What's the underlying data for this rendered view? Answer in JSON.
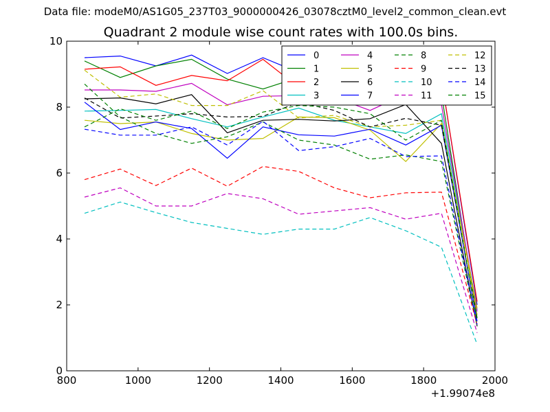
{
  "figure": {
    "suptitle": "Data file: modeM0/AS1G05_237T03_9000000426_03078cztM0_level2_common_clean.evt"
  },
  "chart_data": {
    "type": "line",
    "title": "Quadrant 2 module wise count rates with 100.0s bins.",
    "xlabel": "",
    "ylabel": "",
    "x_offset_label": "+1.99074e8",
    "xlim": [
      800,
      2000
    ],
    "ylim": [
      0,
      10
    ],
    "xticks": [
      800,
      1000,
      1200,
      1400,
      1600,
      1800,
      2000
    ],
    "yticks": [
      0,
      2,
      4,
      6,
      8,
      10
    ],
    "grid": false,
    "legend_position": "top-right",
    "legend_columns": 4,
    "x": [
      850,
      950,
      1050,
      1150,
      1250,
      1350,
      1450,
      1550,
      1650,
      1750,
      1850,
      1950
    ],
    "series": [
      {
        "name": "0",
        "color": "#0000ff",
        "style": "solid",
        "values": [
          9.5,
          9.55,
          9.25,
          9.58,
          9.02,
          9.5,
          9.05,
          9.35,
          9.28,
          8.55,
          8.85,
          2.0
        ]
      },
      {
        "name": "1",
        "color": "#008000",
        "style": "solid",
        "values": [
          9.4,
          8.9,
          9.25,
          9.45,
          8.85,
          8.55,
          8.9,
          8.6,
          8.45,
          8.3,
          8.4,
          1.6
        ]
      },
      {
        "name": "2",
        "color": "#ff0000",
        "style": "solid",
        "values": [
          9.15,
          9.22,
          8.66,
          8.96,
          8.8,
          9.45,
          8.6,
          8.5,
          9.35,
          8.95,
          8.85,
          2.1
        ]
      },
      {
        "name": "3",
        "color": "#00bfbf",
        "style": "solid",
        "values": [
          7.88,
          7.9,
          7.93,
          7.65,
          7.4,
          7.7,
          7.97,
          7.6,
          7.4,
          7.2,
          7.8,
          1.85
        ]
      },
      {
        "name": "4",
        "color": "#bf00bf",
        "style": "solid",
        "values": [
          8.52,
          8.52,
          8.48,
          8.72,
          8.07,
          8.33,
          8.35,
          8.3,
          7.9,
          8.4,
          8.08,
          1.8
        ]
      },
      {
        "name": "5",
        "color": "#bfbf00",
        "style": "solid",
        "values": [
          7.6,
          7.5,
          7.55,
          7.2,
          7.0,
          7.05,
          7.7,
          7.68,
          7.3,
          6.35,
          7.5,
          1.9
        ]
      },
      {
        "name": "6",
        "color": "#000000",
        "style": "solid",
        "values": [
          8.25,
          8.28,
          8.1,
          8.38,
          7.22,
          7.6,
          7.63,
          7.58,
          7.65,
          8.08,
          6.9,
          1.35
        ]
      },
      {
        "name": "7",
        "color": "#0000ff",
        "style": "solid",
        "values": [
          8.15,
          7.32,
          7.55,
          7.35,
          6.45,
          7.4,
          7.16,
          7.12,
          7.33,
          6.85,
          7.45,
          1.5
        ]
      },
      {
        "name": "8",
        "color": "#008000",
        "style": "dashed",
        "values": [
          8.7,
          7.7,
          7.2,
          6.9,
          7.1,
          7.55,
          7.0,
          6.85,
          6.42,
          6.55,
          6.35,
          1.35
        ]
      },
      {
        "name": "9",
        "color": "#ff0000",
        "style": "dashed",
        "values": [
          5.8,
          6.12,
          5.62,
          6.15,
          5.6,
          6.2,
          6.05,
          5.55,
          5.25,
          5.4,
          5.42,
          1.4
        ]
      },
      {
        "name": "10",
        "color": "#00bfbf",
        "style": "dashed",
        "values": [
          4.78,
          5.12,
          4.8,
          4.5,
          4.32,
          4.14,
          4.3,
          4.3,
          4.65,
          4.25,
          3.75,
          0.8
        ]
      },
      {
        "name": "11",
        "color": "#bf00bf",
        "style": "dashed",
        "values": [
          5.27,
          5.55,
          5.0,
          5.0,
          5.38,
          5.22,
          4.75,
          4.85,
          4.95,
          4.6,
          4.78,
          1.15
        ]
      },
      {
        "name": "12",
        "color": "#bfbf00",
        "style": "dashed",
        "values": [
          9.12,
          8.3,
          8.4,
          8.05,
          8.05,
          8.5,
          7.67,
          7.75,
          7.4,
          7.45,
          7.6,
          1.7
        ]
      },
      {
        "name": "13",
        "color": "#000000",
        "style": "dashed",
        "values": [
          8.28,
          7.67,
          7.73,
          7.8,
          7.7,
          7.72,
          8.15,
          7.9,
          7.4,
          7.66,
          7.45,
          1.55
        ]
      },
      {
        "name": "14",
        "color": "#0000ff",
        "style": "dashed",
        "values": [
          7.33,
          7.15,
          7.15,
          7.4,
          6.85,
          7.57,
          6.68,
          6.8,
          7.05,
          6.5,
          6.52,
          1.4
        ]
      },
      {
        "name": "15",
        "color": "#008000",
        "style": "dashed",
        "values": [
          7.4,
          7.95,
          7.6,
          7.88,
          7.35,
          7.85,
          8.05,
          8.0,
          7.8,
          7.0,
          7.6,
          1.5
        ]
      }
    ]
  }
}
